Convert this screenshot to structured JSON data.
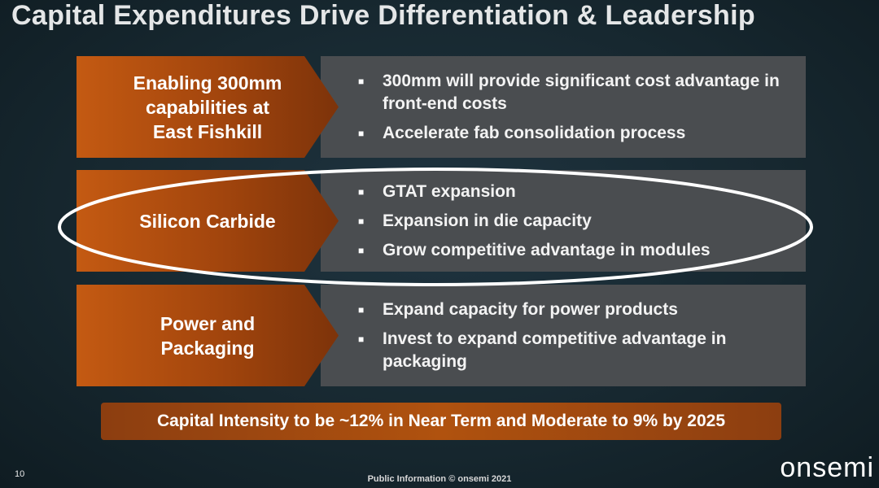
{
  "slide": {
    "title": "Capital Expenditures Drive Differentiation & Leadership",
    "sections": [
      {
        "label": "Enabling 300mm\ncapabilities at\nEast Fishkill",
        "bullets": [
          "300mm will provide significant cost advantage in front-end costs",
          "Accelerate fab consolidation process"
        ]
      },
      {
        "label": "Silicon Carbide",
        "bullets": [
          "GTAT expansion",
          "Expansion in die capacity",
          "Grow competitive advantage in modules"
        ],
        "highlighted": true
      },
      {
        "label": "Power and\nPackaging",
        "bullets": [
          "Expand capacity for power products",
          "Invest to expand competitive advantage in packaging"
        ]
      }
    ],
    "banner": "Capital Intensity to be ~12% in Near Term and Moderate to 9% by 2025",
    "page_number": "10",
    "footer": "Public Information  © onsemi 2021",
    "logo": "onsemi"
  },
  "colors": {
    "background": "#172830",
    "accent_orange": "#c45a12",
    "panel_gray": "#4a4d50",
    "highlight_ring": "#ffffff"
  },
  "bullet_icon": "square-bullet-icon"
}
